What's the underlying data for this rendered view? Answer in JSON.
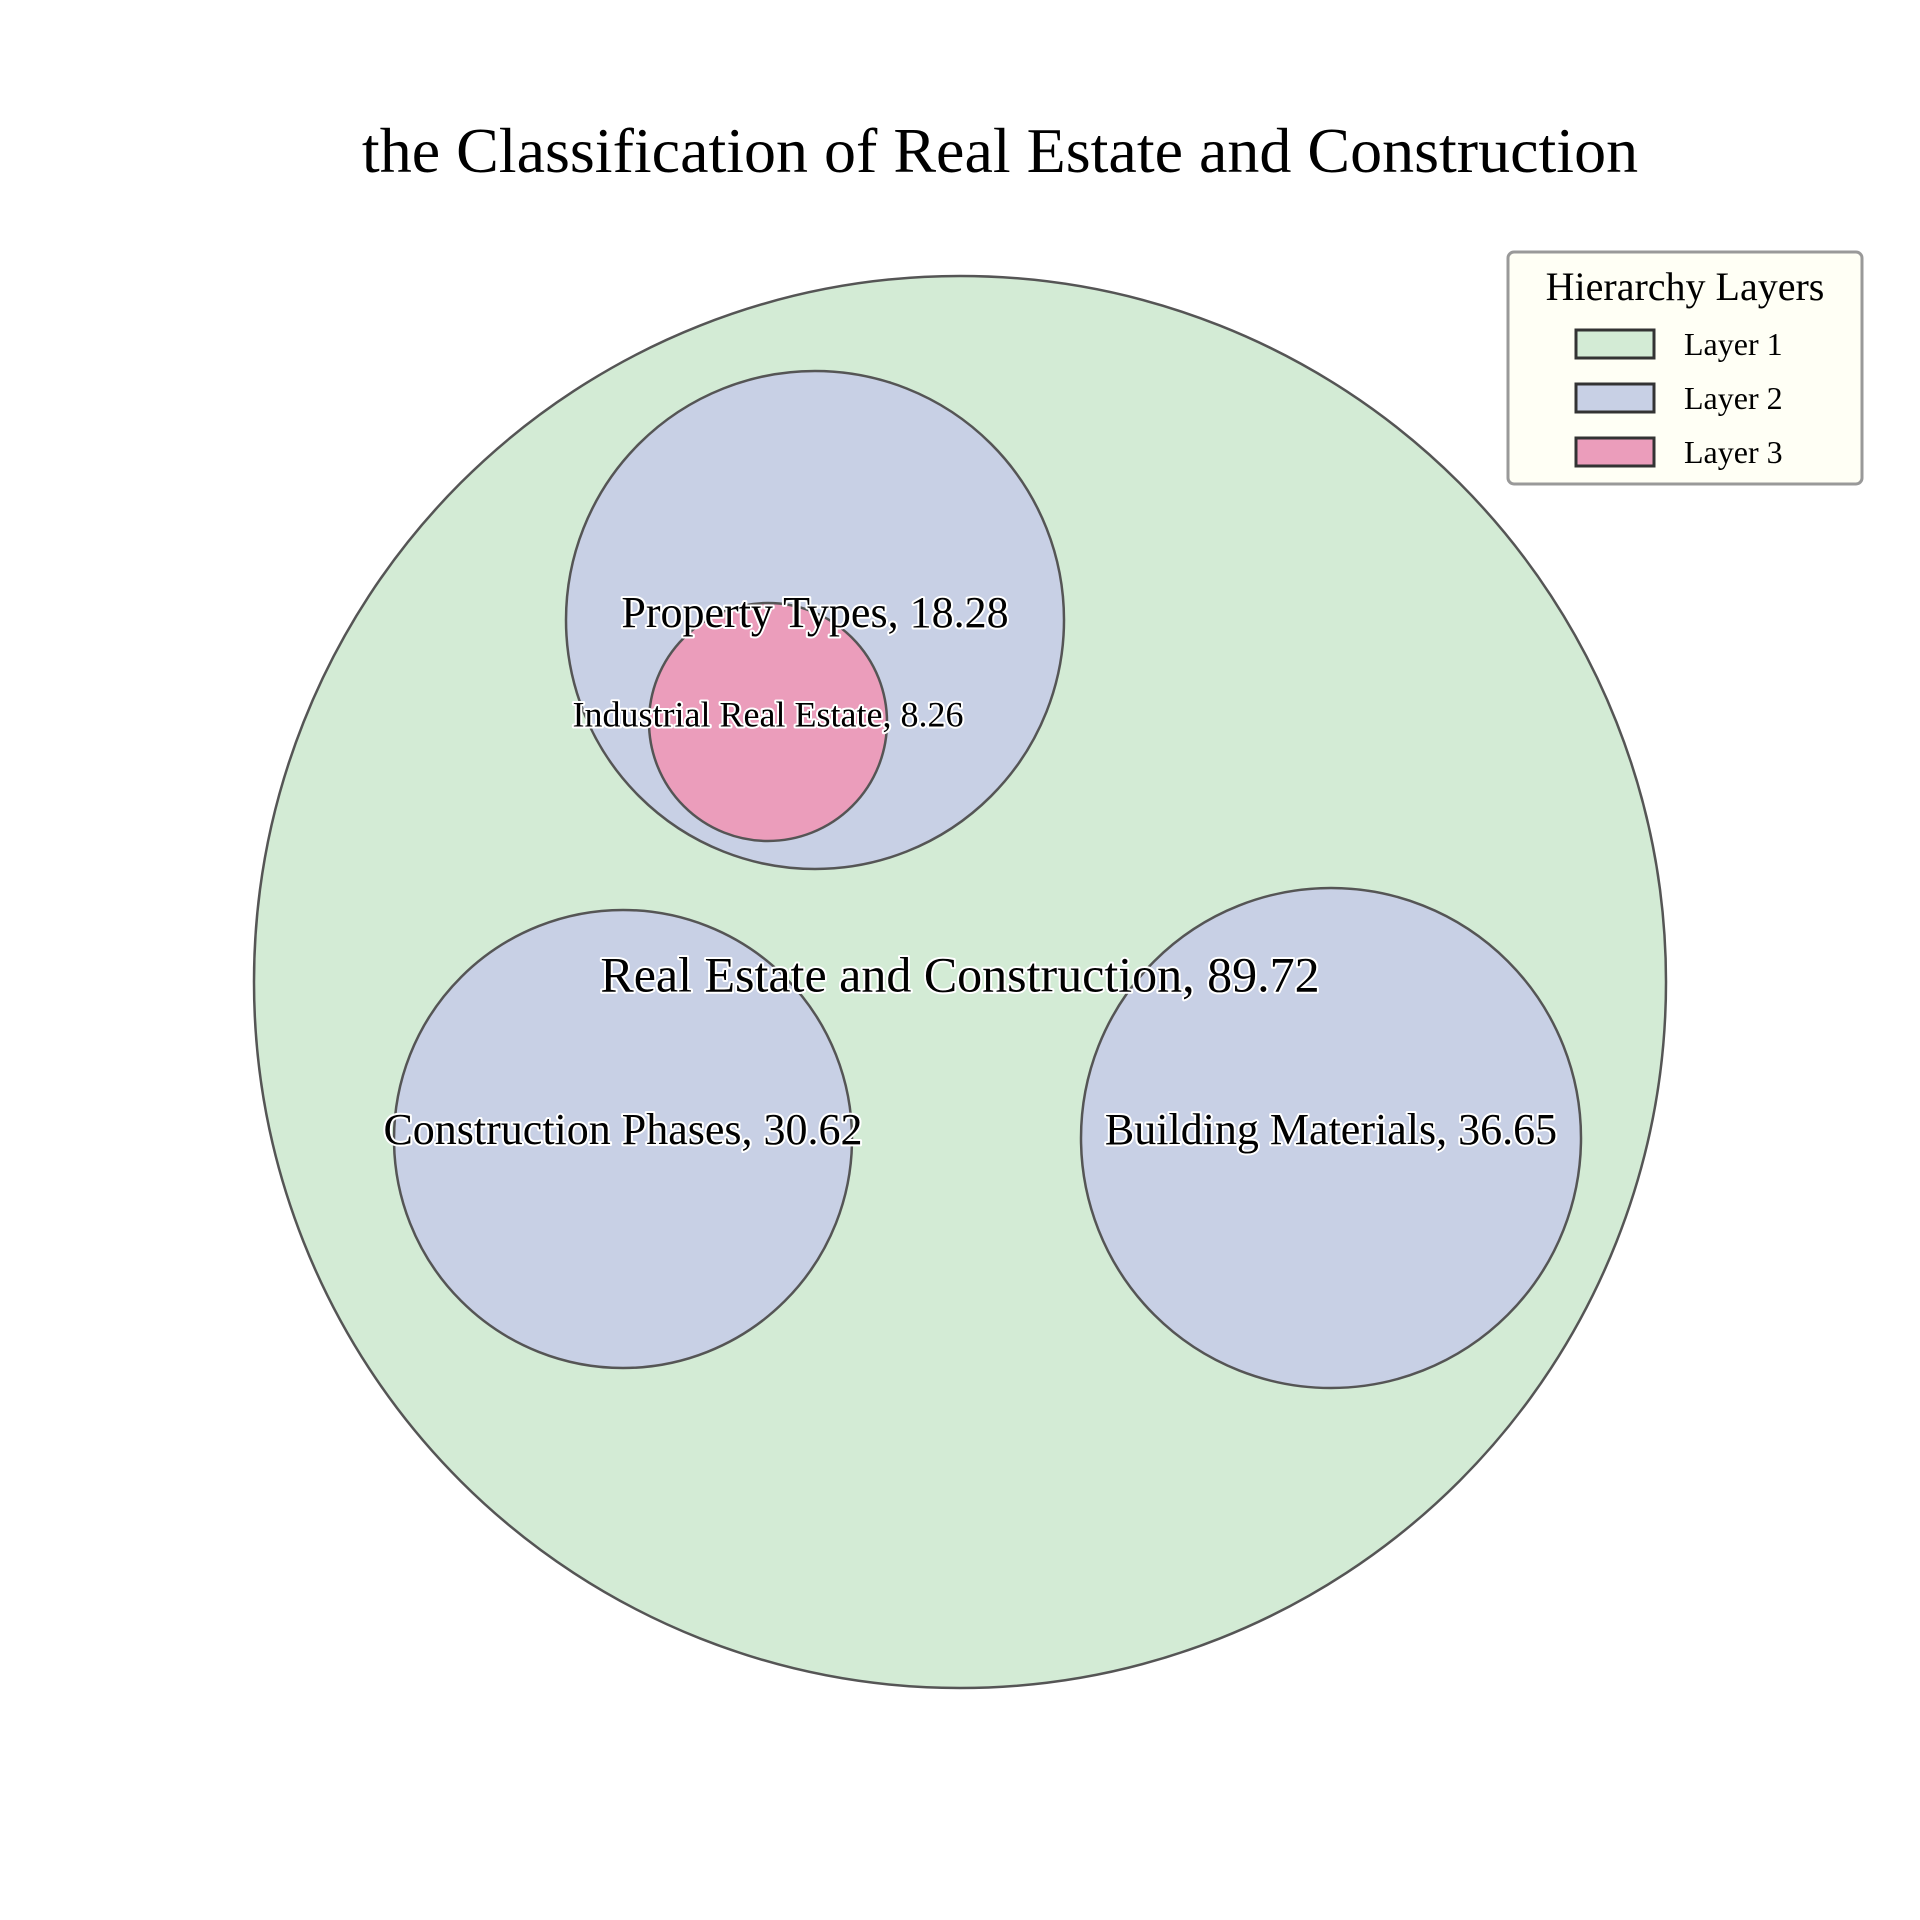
{
  "chart_data": {
    "type": "circle-packing",
    "title": "the Classification of Real Estate and Construction",
    "nodes": [
      {
        "name": "Real Estate and Construction",
        "value": 89.72,
        "label": "Real Estate and Construction, 89.72",
        "layer": 1,
        "parent": null
      },
      {
        "name": "Property Types",
        "value": 18.28,
        "label": "Property Types, 18.28",
        "layer": 2,
        "parent": "Real Estate and Construction"
      },
      {
        "name": "Construction Phases",
        "value": 30.62,
        "label": "Construction Phases, 30.62",
        "layer": 2,
        "parent": "Real Estate and Construction"
      },
      {
        "name": "Building Materials",
        "value": 36.65,
        "label": "Building Materials, 36.65",
        "layer": 2,
        "parent": "Real Estate and Construction"
      },
      {
        "name": "Industrial Real Estate",
        "value": 8.26,
        "label": "Industrial Real Estate, 8.26",
        "layer": 3,
        "parent": "Property Types"
      }
    ],
    "legend": {
      "title": "Hierarchy Layers",
      "placement": "top-right",
      "items": [
        {
          "label": "Layer 1",
          "color": "#d3ebd5"
        },
        {
          "label": "Layer 2",
          "color": "#c8d0e5"
        },
        {
          "label": "Layer 3",
          "color": "#eb9dbb"
        }
      ]
    }
  }
}
